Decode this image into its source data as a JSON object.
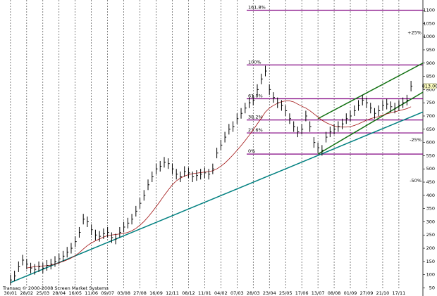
{
  "chart_data": {
    "type": "ohlc",
    "categories": [
      "30/01",
      null,
      null,
      null,
      "28/02",
      null,
      null,
      null,
      "25/03",
      null,
      null,
      null,
      "28/04",
      null,
      null,
      null,
      "16/05",
      null,
      null,
      null,
      "11/06",
      null,
      null,
      null,
      "09/07",
      null,
      null,
      null,
      "03/08",
      null,
      null,
      null,
      "27/08",
      null,
      null,
      null,
      "16/09",
      null,
      null,
      null,
      "12/11",
      null,
      null,
      null,
      "08/12",
      null,
      null,
      null,
      "11/01",
      null,
      null,
      null,
      "04/02",
      null,
      null,
      null,
      "07/03",
      null,
      null,
      null,
      "28/03",
      null,
      null,
      null,
      "23/04",
      null,
      null,
      null,
      "25/05",
      null,
      null,
      null,
      "17/06",
      null,
      null,
      null,
      "13/07",
      null,
      null,
      null,
      "08/08",
      null,
      null,
      null,
      "01/09",
      null,
      null,
      null,
      "27/09",
      null,
      null,
      null,
      "21/10",
      null,
      null,
      null,
      "17/11",
      null,
      null,
      null
    ],
    "high": [
      100,
      115,
      150,
      175,
      160,
      145,
      140,
      150,
      145,
      155,
      160,
      170,
      180,
      190,
      205,
      220,
      245,
      280,
      330,
      320,
      290,
      270,
      265,
      275,
      280,
      260,
      255,
      280,
      300,
      315,
      330,
      360,
      390,
      420,
      460,
      490,
      520,
      530,
      545,
      540,
      520,
      500,
      490,
      510,
      505,
      490,
      495,
      500,
      505,
      500,
      520,
      580,
      610,
      640,
      670,
      680,
      710,
      730,
      750,
      770,
      780,
      820,
      860,
      890,
      820,
      790,
      770,
      760,
      740,
      710,
      680,
      660,
      670,
      720,
      680,
      620,
      600,
      590,
      640,
      660,
      670,
      680,
      690,
      710,
      720,
      740,
      760,
      780,
      770,
      750,
      730,
      740,
      760,
      765,
      755,
      750,
      760,
      770,
      780,
      833
    ],
    "low": [
      60,
      75,
      110,
      135,
      120,
      105,
      100,
      110,
      105,
      115,
      120,
      130,
      140,
      150,
      165,
      180,
      205,
      240,
      290,
      280,
      250,
      230,
      225,
      235,
      240,
      220,
      215,
      240,
      260,
      275,
      290,
      320,
      350,
      380,
      420,
      450,
      480,
      490,
      505,
      500,
      480,
      460,
      450,
      470,
      465,
      450,
      455,
      460,
      465,
      460,
      480,
      540,
      570,
      600,
      630,
      640,
      670,
      690,
      710,
      730,
      740,
      780,
      820,
      850,
      780,
      750,
      730,
      720,
      700,
      670,
      640,
      620,
      630,
      680,
      640,
      580,
      560,
      550,
      600,
      620,
      630,
      640,
      650,
      670,
      680,
      700,
      720,
      740,
      730,
      710,
      690,
      700,
      720,
      725,
      715,
      710,
      720,
      730,
      740,
      793
    ],
    "close": [
      80,
      95,
      130,
      155,
      140,
      125,
      120,
      130,
      125,
      135,
      140,
      150,
      160,
      170,
      185,
      200,
      225,
      260,
      310,
      300,
      270,
      250,
      245,
      255,
      260,
      240,
      235,
      260,
      280,
      295,
      310,
      340,
      370,
      400,
      440,
      470,
      500,
      510,
      525,
      520,
      500,
      480,
      470,
      490,
      485,
      470,
      475,
      480,
      485,
      480,
      500,
      560,
      590,
      620,
      650,
      660,
      690,
      710,
      730,
      750,
      760,
      800,
      840,
      870,
      800,
      770,
      750,
      740,
      720,
      690,
      660,
      640,
      650,
      700,
      660,
      600,
      580,
      570,
      620,
      640,
      650,
      660,
      670,
      690,
      700,
      720,
      740,
      760,
      750,
      730,
      710,
      720,
      740,
      745,
      735,
      730,
      740,
      750,
      760,
      813
    ],
    "color": "#000000",
    "moving_average": {
      "color": "#a01010",
      "values": [
        null,
        null,
        null,
        null,
        125,
        128,
        130,
        132,
        133,
        134,
        136,
        140,
        145,
        150,
        156,
        163,
        172,
        183,
        197,
        210,
        220,
        228,
        235,
        242,
        248,
        250,
        252,
        254,
        256,
        260,
        266,
        275,
        287,
        301,
        318,
        337,
        357,
        378,
        400,
        420,
        440,
        455,
        465,
        473,
        478,
        482,
        484,
        486,
        488,
        490,
        493,
        500,
        510,
        522,
        537,
        553,
        570,
        588,
        607,
        627,
        648,
        670,
        692,
        715,
        730,
        740,
        748,
        754,
        757,
        757,
        753,
        745,
        737,
        730,
        720,
        708,
        696,
        684,
        675,
        668,
        662,
        659,
        658,
        658,
        660,
        664,
        670,
        677,
        684,
        690,
        694,
        698,
        703,
        708,
        712,
        716,
        720,
        724,
        728,
        735
      ]
    },
    "trend_lines": [
      {
        "color": "#008080",
        "start": [
          0,
          70
        ],
        "end": [
          102,
          715
        ]
      },
      {
        "color": "#107010",
        "start": [
          76,
          690
        ],
        "end": [
          102,
          900
        ]
      },
      {
        "color": "#107010",
        "start": [
          76,
          556
        ],
        "end": [
          102,
          790
        ]
      }
    ],
    "fib_levels": {
      "color": "#800080",
      "levels": [
        {
          "label": "161.8%",
          "value": 1100
        },
        {
          "label": "100%",
          "value": 893
        },
        {
          "label": "61.8%",
          "value": 765
        },
        {
          "label": "38.2%",
          "value": 685
        },
        {
          "label": "23.6%",
          "value": 636
        },
        {
          "label": "0%",
          "value": 556
        }
      ]
    },
    "percent_marks": [
      {
        "label": "+25%",
        "value": 1015,
        "color": "#008000"
      },
      {
        "label": "-25%",
        "value": 610,
        "color": "#c00000"
      },
      {
        "label": "-50%",
        "value": 455,
        "color": "#c00000"
      }
    ],
    "last_price": {
      "value": 813,
      "label": "813.00"
    },
    "ylim": [
      30,
      1120
    ],
    "yticks": [
      50,
      100,
      150,
      200,
      250,
      300,
      350,
      400,
      450,
      500,
      550,
      600,
      650,
      700,
      750,
      800,
      850,
      900,
      950,
      1000,
      1050,
      1100
    ],
    "grid": true,
    "copyright": "Transaq © 2000-2008 Screen Market Systems"
  }
}
